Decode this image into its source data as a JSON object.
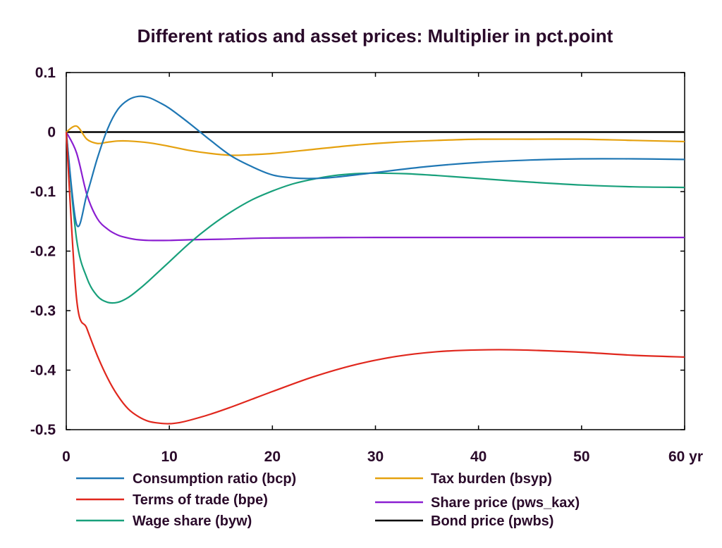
{
  "chart_data": {
    "type": "line",
    "title": "Different ratios and asset prices: Multiplier in pct.point",
    "xlabel": "",
    "ylabel": "",
    "xlim": [
      0,
      60
    ],
    "ylim": [
      -0.5,
      0.1
    ],
    "x_ticks": [
      0,
      10,
      20,
      30,
      40,
      50,
      60
    ],
    "x_tick_labels": [
      "0",
      "10",
      "20",
      "30",
      "40",
      "50",
      "60 yr"
    ],
    "y_ticks": [
      0.1,
      0,
      -0.1,
      -0.2,
      -0.3,
      -0.4,
      -0.5
    ],
    "y_tick_labels": [
      "0.1",
      "0",
      "-0.1",
      "-0.2",
      "-0.3",
      "-0.4",
      "-0.5"
    ],
    "grid": false,
    "legend_position": "bottom",
    "series": [
      {
        "name": "Consumption ratio (bcp)",
        "color": "#1f77b4",
        "x": [
          0,
          1,
          2,
          3,
          4,
          5,
          6,
          7,
          8,
          9,
          10,
          12,
          14,
          16,
          18,
          20,
          22,
          24,
          26,
          30,
          35,
          40,
          45,
          50,
          55,
          60
        ],
        "y": [
          0,
          -0.155,
          -0.105,
          -0.045,
          0.005,
          0.038,
          0.054,
          0.06,
          0.058,
          0.05,
          0.04,
          0.014,
          -0.014,
          -0.04,
          -0.058,
          -0.072,
          -0.077,
          -0.078,
          -0.076,
          -0.068,
          -0.058,
          -0.051,
          -0.047,
          -0.045,
          -0.045,
          -0.046
        ]
      },
      {
        "name": "Terms of trade (bpe)",
        "color": "#e0271d",
        "x": [
          0,
          1,
          2,
          3,
          4,
          5,
          6,
          7,
          8,
          9,
          10,
          11,
          12,
          14,
          16,
          18,
          20,
          24,
          28,
          32,
          36,
          40,
          44,
          50,
          55,
          60
        ],
        "y": [
          0,
          -0.28,
          -0.33,
          -0.375,
          -0.413,
          -0.443,
          -0.465,
          -0.478,
          -0.486,
          -0.489,
          -0.49,
          -0.488,
          -0.484,
          -0.474,
          -0.462,
          -0.449,
          -0.436,
          -0.411,
          -0.391,
          -0.377,
          -0.369,
          -0.366,
          -0.366,
          -0.37,
          -0.375,
          -0.378
        ]
      },
      {
        "name": "Wage share (byw)",
        "color": "#18a07b",
        "x": [
          0,
          1,
          2,
          3,
          4,
          5,
          6,
          7,
          8,
          10,
          12,
          14,
          16,
          18,
          20,
          22,
          24,
          26,
          28,
          30,
          33,
          36,
          40,
          45,
          50,
          55,
          60
        ],
        "y": [
          0,
          -0.18,
          -0.245,
          -0.275,
          -0.286,
          -0.286,
          -0.278,
          -0.265,
          -0.25,
          -0.218,
          -0.186,
          -0.158,
          -0.134,
          -0.114,
          -0.099,
          -0.087,
          -0.079,
          -0.073,
          -0.07,
          -0.069,
          -0.07,
          -0.073,
          -0.078,
          -0.084,
          -0.089,
          -0.092,
          -0.093
        ]
      },
      {
        "name": "Tax burden (bsyp)",
        "color": "#e5a10f",
        "x": [
          0,
          1,
          2,
          3,
          4,
          5,
          6,
          8,
          10,
          12,
          14,
          16,
          18,
          20,
          24,
          28,
          32,
          36,
          40,
          45,
          50,
          55,
          60
        ],
        "y": [
          0,
          0.01,
          -0.012,
          -0.019,
          -0.017,
          -0.015,
          -0.015,
          -0.018,
          -0.024,
          -0.031,
          -0.036,
          -0.039,
          -0.038,
          -0.036,
          -0.029,
          -0.022,
          -0.017,
          -0.014,
          -0.012,
          -0.012,
          -0.012,
          -0.014,
          -0.016
        ]
      },
      {
        "name": "Share price (pws_kax)",
        "color": "#8b1fd1",
        "x": [
          0,
          1,
          2,
          3,
          4,
          5,
          6,
          7,
          8,
          10,
          12,
          15,
          20,
          30,
          40,
          50,
          60
        ],
        "y": [
          0,
          -0.035,
          -0.105,
          -0.145,
          -0.163,
          -0.173,
          -0.178,
          -0.181,
          -0.182,
          -0.182,
          -0.181,
          -0.18,
          -0.178,
          -0.177,
          -0.177,
          -0.177,
          -0.177
        ]
      },
      {
        "name": "Bond price (pwbs)",
        "color": "#000000",
        "x": [
          0,
          60
        ],
        "y": [
          0,
          0
        ]
      }
    ]
  }
}
